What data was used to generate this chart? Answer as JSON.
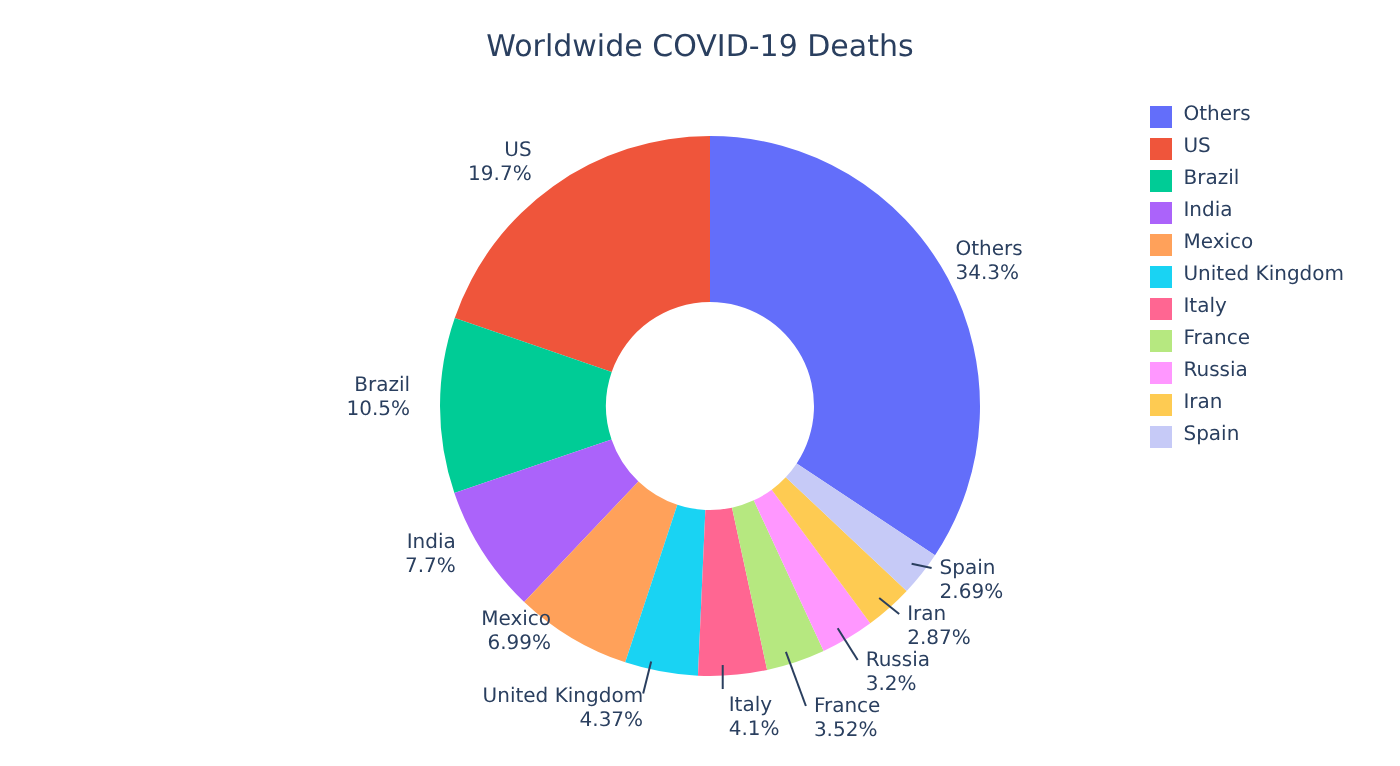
{
  "chart_data": {
    "type": "donut",
    "title": "Worldwide COVID-19 Deaths",
    "categories": [
      "Others",
      "US",
      "Brazil",
      "India",
      "Mexico",
      "United Kingdom",
      "Italy",
      "France",
      "Russia",
      "Iran",
      "Spain"
    ],
    "values": [
      34.3,
      19.7,
      10.5,
      7.7,
      6.99,
      4.37,
      4.1,
      3.52,
      3.2,
      2.87,
      2.69
    ],
    "value_labels": [
      "34.3%",
      "19.7%",
      "10.5%",
      "7.7%",
      "6.99%",
      "4.37%",
      "4.1%",
      "3.52%",
      "3.2%",
      "2.87%",
      "2.69%"
    ],
    "colors": [
      "#636efa",
      "#ef553b",
      "#00cc96",
      "#ab63fa",
      "#ffa15a",
      "#19d3f3",
      "#ff6692",
      "#b6e880",
      "#ff97ff",
      "#fecb52",
      "#c6caf7"
    ],
    "data_labels": true,
    "legend": "top right"
  }
}
